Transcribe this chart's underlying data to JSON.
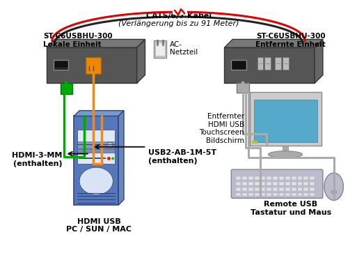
{
  "title_top": "CAT5/6/7 Kabel",
  "title_top2": "(Verlängerung bis zu 91 Meter)",
  "label_local_unit": "ST-C6USBHU-300\nLokale Einheit",
  "label_remote_unit": "ST-C6USBHU-300\nEntfernte Einheit",
  "label_hdmi": "HDMI-3-MM\n(enthalten)",
  "label_usb_cable": "USB2-AB-1M-5T\n(enthalten)",
  "label_ac": "AC-\nNetzteil",
  "label_pc": "HDMI USB\nPC / SUN / MAC",
  "label_monitor": "Entfernter\nHDMI USB\nTouchscreen\nBildschirm",
  "label_remote_usb": "Remote USB\nTastatur und Maus",
  "bg_color": "#ffffff",
  "box_color": "#555555",
  "red_cable": "#dd0000",
  "black_cable": "#222222",
  "green_cable": "#00aa00",
  "orange_cable": "#ff8800",
  "gray_cable": "#aaaaaa",
  "pc_body_color": "#5577bb",
  "monitor_screen": "#55aacc",
  "monitor_body": "#cccccc",
  "keyboard_color": "#bbbbcc",
  "mouse_color": "#bbbbcc",
  "rj45_color": "#ee8800"
}
